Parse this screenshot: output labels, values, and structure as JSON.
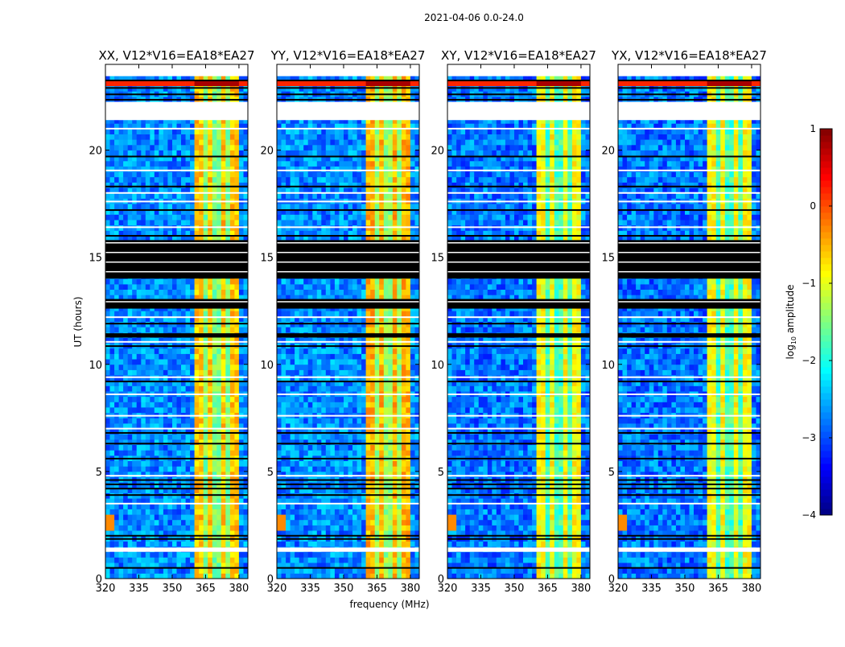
{
  "chart_data": {
    "type": "heatmap",
    "title": "2021-04-06 0.0-24.0",
    "xlabel": "frequency (MHz)",
    "ylabel": "UT (hours)",
    "xlim": [
      320,
      384
    ],
    "ylim": [
      0,
      24
    ],
    "xticks": [
      "320",
      "335",
      "350",
      "365",
      "380"
    ],
    "xtick_values": [
      320,
      335,
      350,
      365,
      380
    ],
    "yticks": [
      "0",
      "5",
      "10",
      "15",
      "20"
    ],
    "ytick_values": [
      0,
      5,
      10,
      15,
      20
    ],
    "panels": [
      {
        "title": "XX, V12*V16=EA18*EA27",
        "rfi_level": -0.6,
        "background_level": -2.7
      },
      {
        "title": "YY, V12*V16=EA18*EA27",
        "rfi_level": -0.5,
        "background_level": -2.7
      },
      {
        "title": "XY, V12*V16=EA18*EA27",
        "rfi_level": -0.9,
        "background_level": -2.8
      },
      {
        "title": "YX, V12*V16=EA18*EA27",
        "rfi_level": -0.9,
        "background_level": -2.8
      }
    ],
    "rfi_band_mhz": [
      360,
      380
    ],
    "rfi_notch_mhz": [
      365,
      370,
      375
    ],
    "strong_rfi_hour": 23.1,
    "no_data_hours": [
      [
        23.45,
        24
      ],
      [
        21.4,
        22.25
      ],
      [
        1.25,
        1.45
      ]
    ],
    "flagged_hours": [
      [
        14.0,
        15.8
      ],
      [
        12.6,
        13.05
      ],
      [
        11.25,
        11.45
      ]
    ],
    "flagged_lines_hours": [
      23.25,
      22.9,
      22.6,
      22.35,
      19.7,
      18.3,
      17.2,
      16.0,
      11.9,
      10.85,
      9.2,
      6.8,
      6.3,
      5.6,
      4.6,
      4.4,
      4.2,
      3.9,
      2.0,
      1.85,
      0.5
    ],
    "blank_lines_hours": [
      21.0,
      19.05,
      18.0,
      17.6,
      16.4,
      12.2,
      11.05,
      9.4,
      8.6,
      7.6,
      7.0,
      4.8,
      3.5
    ],
    "colorbar": {
      "label": "log10 amplitude",
      "label_main": "log",
      "label_sub": "10",
      "label_rest": " amplitude",
      "range": [
        -4,
        1
      ],
      "ticks": [
        "1",
        "0",
        "−1",
        "−2",
        "−3",
        "−4"
      ],
      "tick_values": [
        1,
        0,
        -1,
        -2,
        -3,
        -4
      ]
    }
  }
}
